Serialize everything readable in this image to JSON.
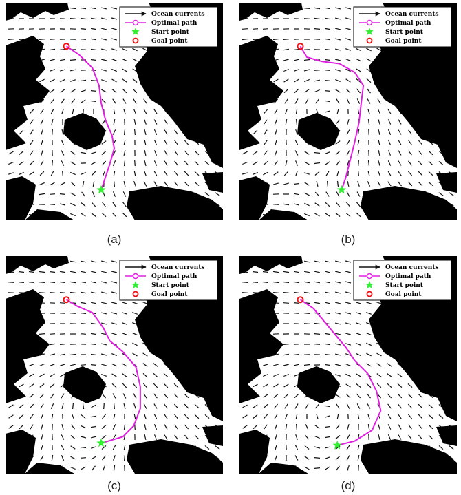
{
  "colors": {
    "land": "#000000",
    "water": "#ffffff",
    "path": "#e020e0",
    "start": "#33ee33",
    "goal": "#ee1111",
    "current_arrow": "#111111"
  },
  "legend": {
    "ocean_currents": "Ocean currents",
    "optimal_path": "Optimal path",
    "start_point": "Start point",
    "goal_point": "Goal point"
  },
  "panels": [
    {
      "caption": "(a)",
      "vortex_center": [
        0.4,
        0.5
      ],
      "path": [
        [
          0.28,
          0.2
        ],
        [
          0.34,
          0.24
        ],
        [
          0.4,
          0.3
        ],
        [
          0.43,
          0.38
        ],
        [
          0.44,
          0.46
        ],
        [
          0.46,
          0.54
        ],
        [
          0.49,
          0.61
        ],
        [
          0.5,
          0.67
        ],
        [
          0.48,
          0.74
        ],
        [
          0.46,
          0.8
        ],
        [
          0.44,
          0.86
        ]
      ]
    },
    {
      "caption": "(b)",
      "vortex_center": [
        0.4,
        0.48
      ],
      "path": [
        [
          0.28,
          0.2
        ],
        [
          0.31,
          0.25
        ],
        [
          0.38,
          0.27
        ],
        [
          0.46,
          0.28
        ],
        [
          0.53,
          0.32
        ],
        [
          0.57,
          0.38
        ],
        [
          0.56,
          0.46
        ],
        [
          0.55,
          0.55
        ],
        [
          0.53,
          0.64
        ],
        [
          0.51,
          0.72
        ],
        [
          0.49,
          0.8
        ],
        [
          0.47,
          0.86
        ]
      ]
    },
    {
      "caption": "(c)",
      "vortex_center": [
        0.4,
        0.68
      ],
      "path": [
        [
          0.28,
          0.2
        ],
        [
          0.33,
          0.23
        ],
        [
          0.4,
          0.26
        ],
        [
          0.45,
          0.33
        ],
        [
          0.48,
          0.39
        ],
        [
          0.54,
          0.44
        ],
        [
          0.6,
          0.51
        ],
        [
          0.62,
          0.6
        ],
        [
          0.62,
          0.7
        ],
        [
          0.59,
          0.78
        ],
        [
          0.54,
          0.83
        ],
        [
          0.44,
          0.86
        ]
      ]
    },
    {
      "caption": "(d)",
      "vortex_center": [
        0.4,
        0.72
      ],
      "path": [
        [
          0.28,
          0.2
        ],
        [
          0.34,
          0.24
        ],
        [
          0.39,
          0.3
        ],
        [
          0.44,
          0.36
        ],
        [
          0.49,
          0.42
        ],
        [
          0.53,
          0.48
        ],
        [
          0.59,
          0.54
        ],
        [
          0.63,
          0.62
        ],
        [
          0.65,
          0.71
        ],
        [
          0.61,
          0.8
        ],
        [
          0.53,
          0.85
        ],
        [
          0.45,
          0.87
        ]
      ]
    }
  ]
}
